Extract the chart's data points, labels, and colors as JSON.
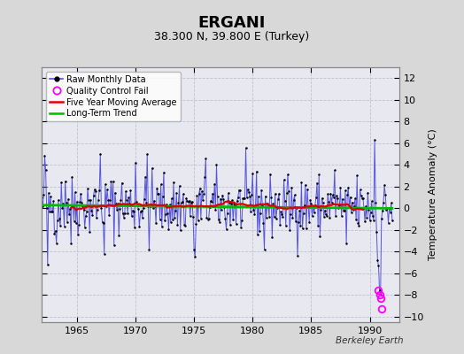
{
  "title": "ERGANI",
  "subtitle": "38.300 N, 39.800 E (Turkey)",
  "ylabel": "Temperature Anomaly (°C)",
  "credit": "Berkeley Earth",
  "xlim": [
    1962.0,
    1992.5
  ],
  "ylim": [
    -10.5,
    13
  ],
  "yticks": [
    -10,
    -8,
    -6,
    -4,
    -2,
    0,
    2,
    4,
    6,
    8,
    10,
    12
  ],
  "xticks": [
    1965,
    1970,
    1975,
    1980,
    1985,
    1990
  ],
  "bg_color": "#d8d8d8",
  "plot_bg_color": "#e8e8f0",
  "raw_color": "#5555dd",
  "dot_color": "#000000",
  "ma_color": "#dd0000",
  "trend_color": "#00bb00",
  "qc_color": "#ff00ff",
  "grid_color": "#bbbbcc",
  "title_fontsize": 13,
  "subtitle_fontsize": 9,
  "ylabel_fontsize": 8,
  "tick_fontsize": 8,
  "seed": 42,
  "n_years": 30,
  "start_year": 1962,
  "qc_fail_times": [
    1990.75,
    1990.833,
    1990.917,
    1991.0
  ],
  "qc_fail_values": [
    -7.6,
    -8.0,
    -8.3,
    -9.3
  ]
}
